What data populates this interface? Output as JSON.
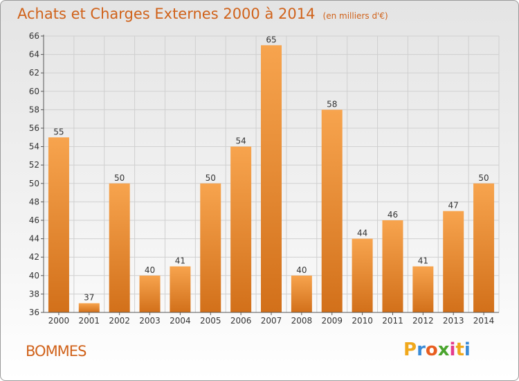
{
  "header": {
    "title": "Achats et Charges Externes 2000 à 2014",
    "unit": "(en milliers d'€)"
  },
  "footer": {
    "place": "BOMMES",
    "logo_letters": [
      "P",
      "r",
      "o",
      "x",
      "i",
      "t",
      "i"
    ],
    "logo_colors": [
      "#f0a81c",
      "#3a8bd6",
      "#e85d1f",
      "#4aa52e",
      "#e43b8c",
      "#f0a81c",
      "#3a8bd6"
    ]
  },
  "colors": {
    "bar_top": "#f7a44e",
    "bar_bottom": "#d2701a",
    "title": "#d0621a",
    "grid": "#cfcfcf"
  },
  "chart_data": {
    "type": "bar",
    "categories": [
      "2000",
      "2001",
      "2002",
      "2003",
      "2004",
      "2005",
      "2006",
      "2007",
      "2008",
      "2009",
      "2010",
      "2011",
      "2012",
      "2013",
      "2014"
    ],
    "values": [
      55,
      37,
      50,
      40,
      41,
      50,
      54,
      65,
      40,
      58,
      44,
      46,
      41,
      47,
      50
    ],
    "ylim": [
      36,
      66
    ],
    "yticks": [
      36,
      38,
      40,
      42,
      44,
      46,
      48,
      50,
      52,
      54,
      56,
      58,
      60,
      62,
      64,
      66
    ],
    "grid": true,
    "data_labels": true
  }
}
